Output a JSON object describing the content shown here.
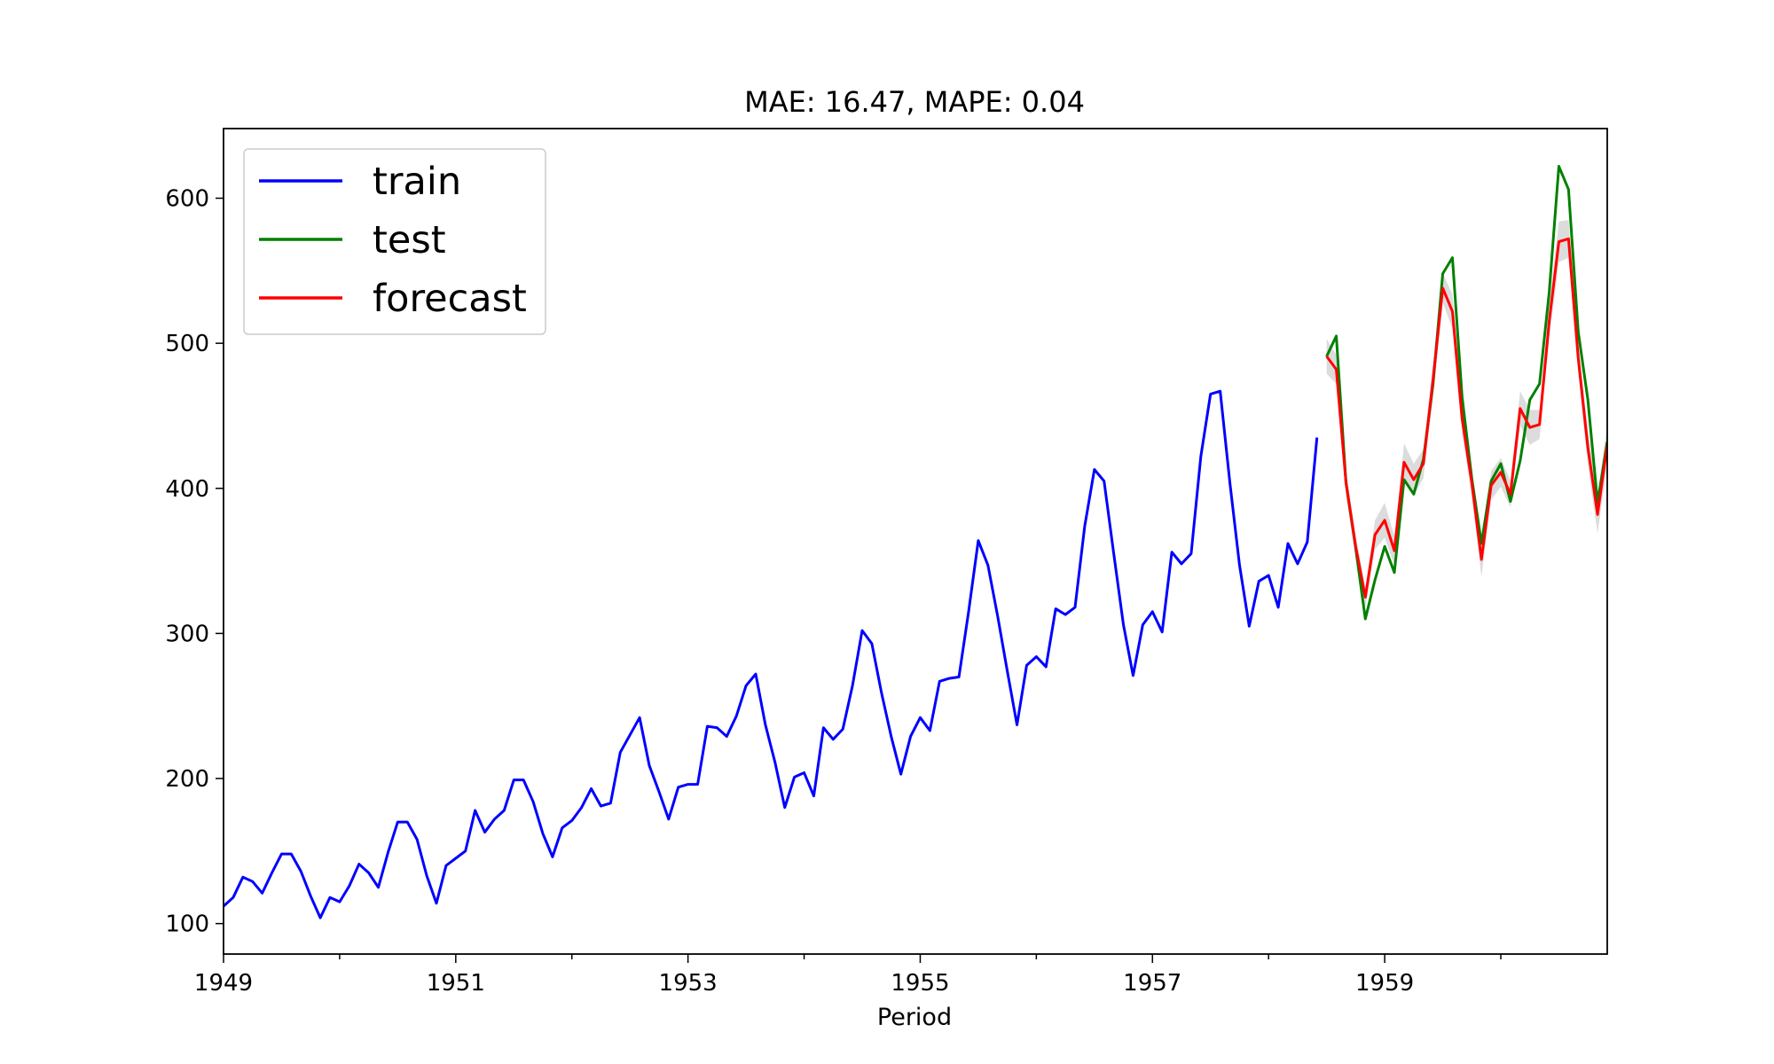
{
  "chart_data": {
    "type": "line",
    "title": "MAE: 16.47, MAPE: 0.04",
    "xlabel": "Period",
    "ylabel": "",
    "xlim": [
      "1949-01",
      "1960-12"
    ],
    "ylim": [
      79,
      648
    ],
    "x_ticks": [
      "1949",
      "1951",
      "1953",
      "1955",
      "1957",
      "1959"
    ],
    "y_ticks": [
      100,
      200,
      300,
      400,
      500,
      600
    ],
    "grid": false,
    "legend_position": "top-left",
    "colors": {
      "train": "#0000ff",
      "test": "#008000",
      "forecast": "#ff0000",
      "interval": "#bfbfbf"
    },
    "series": [
      {
        "name": "train",
        "start": "1949-01",
        "values": [
          112,
          118,
          132,
          129,
          121,
          135,
          148,
          148,
          136,
          119,
          104,
          118,
          115,
          126,
          141,
          135,
          125,
          149,
          170,
          170,
          158,
          133,
          114,
          140,
          145,
          150,
          178,
          163,
          172,
          178,
          199,
          199,
          184,
          162,
          146,
          166,
          171,
          180,
          193,
          181,
          183,
          218,
          230,
          242,
          209,
          191,
          172,
          194,
          196,
          196,
          236,
          235,
          229,
          243,
          264,
          272,
          237,
          211,
          180,
          201,
          204,
          188,
          235,
          227,
          234,
          264,
          302,
          293,
          259,
          229,
          203,
          229,
          242,
          233,
          267,
          269,
          270,
          315,
          364,
          347,
          312,
          274,
          237,
          278,
          284,
          277,
          317,
          313,
          318,
          374,
          413,
          405,
          355,
          306,
          271,
          306,
          315,
          301,
          356,
          348,
          355,
          422,
          465,
          467,
          404,
          347,
          305,
          336,
          340,
          318,
          362,
          348,
          363,
          435
        ]
      },
      {
        "name": "test",
        "start": "1958-07",
        "values": [
          491,
          505,
          404,
          359,
          310,
          337,
          360,
          342,
          406,
          396,
          420,
          472,
          548,
          559,
          463,
          407,
          362,
          405,
          417,
          391,
          419,
          461,
          472,
          535,
          622,
          606,
          508,
          461,
          390,
          432
        ]
      },
      {
        "name": "forecast",
        "start": "1958-07",
        "values": [
          491,
          482,
          404,
          360,
          325,
          368,
          378,
          357,
          418,
          406,
          417,
          475,
          538,
          522,
          448,
          404,
          351,
          402,
          411,
          396,
          455,
          442,
          444,
          515,
          570,
          572,
          490,
          428,
          382,
          430
        ]
      }
    ],
    "interval": {
      "start": "1958-07",
      "half_width": [
        12,
        10,
        9,
        8,
        7,
        10,
        12,
        10,
        13,
        11,
        10,
        12,
        10,
        12,
        10,
        10,
        12,
        10,
        10,
        9,
        12,
        12,
        10,
        12,
        14,
        13,
        11,
        12,
        13,
        14
      ]
    }
  }
}
